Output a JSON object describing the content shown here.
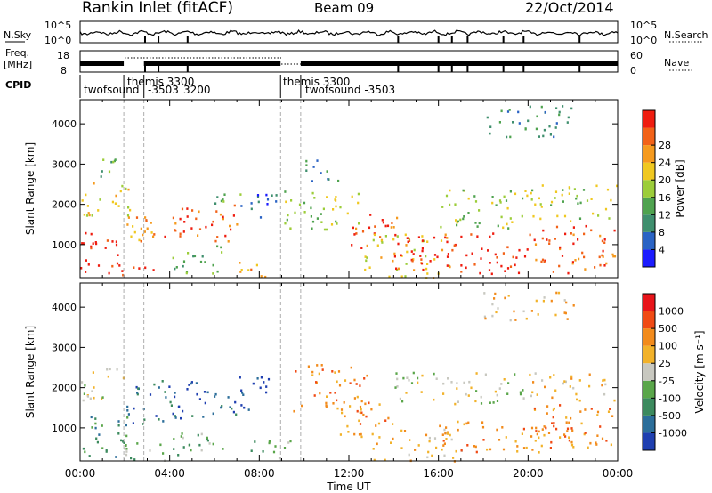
{
  "header": {
    "station": "Rankin Inlet (fitACF)",
    "beam": "Beam 09",
    "date": "22/Oct/2014"
  },
  "noise_panel": {
    "left_label": "N.Sky",
    "left_ticks": [
      "10^5",
      "10^0"
    ],
    "right_ticks": [
      "10^5",
      "10^0"
    ],
    "right_label": "N.Search"
  },
  "freq_panel": {
    "left_label_1": "Freq.",
    "left_label_2": "[MHz]",
    "left_ticks": [
      "18",
      "8"
    ],
    "right_ticks": [
      "60",
      "0"
    ],
    "right_label": "Nave"
  },
  "cpid": {
    "label": "CPID",
    "entries": [
      {
        "text": "twofsound",
        "row": "low"
      },
      {
        "text": "themis  3300",
        "row": "high"
      },
      {
        "text": "-3503",
        "row": "low"
      },
      {
        "text": "3200",
        "row": "low"
      },
      {
        "text": "themis  3300",
        "row": "high"
      },
      {
        "text": "twofsound  -3503",
        "row": "low"
      }
    ],
    "change_times_hours": [
      1.95,
      2.85,
      8.95,
      9.85
    ]
  },
  "chart_data": [
    {
      "type": "heatmap",
      "name": "power",
      "ylabel": "Slant Range [km]",
      "yticks": [
        "1000",
        "2000",
        "3000",
        "4000"
      ],
      "ylim": [
        180,
        4600
      ],
      "xlim": [
        0,
        24
      ],
      "colorbar": {
        "label": "Power [dB]",
        "ticks": [
          "4",
          "8",
          "12",
          "16",
          "20",
          "24",
          "28"
        ],
        "colors": [
          "#1c1cff",
          "#2a63c4",
          "#3f8f6e",
          "#4fa34f",
          "#9ccd3a",
          "#f0c820",
          "#f59a1e",
          "#f26218",
          "#ef1d10"
        ]
      },
      "echo_regions": [
        {
          "t0": 0.0,
          "t1": 2.0,
          "r0": 300,
          "r1": 1400,
          "level": 8
        },
        {
          "t0": 0.0,
          "t1": 2.2,
          "r0": 1700,
          "r1": 2600,
          "level": 5
        },
        {
          "t0": 0.3,
          "t1": 1.7,
          "r0": 2700,
          "r1": 3200,
          "level": 3
        },
        {
          "t0": 1.8,
          "t1": 3.5,
          "r0": 200,
          "r1": 500,
          "level": 8
        },
        {
          "t0": 2.0,
          "t1": 3.5,
          "r0": 1000,
          "r1": 2100,
          "level": 6
        },
        {
          "t0": 3.2,
          "t1": 5.0,
          "r0": 1200,
          "r1": 2000,
          "level": 7
        },
        {
          "t0": 4.0,
          "t1": 6.5,
          "r0": 300,
          "r1": 1000,
          "level": 3
        },
        {
          "t0": 5.0,
          "t1": 7.0,
          "r0": 1100,
          "r1": 2000,
          "level": 7
        },
        {
          "t0": 6.0,
          "t1": 7.5,
          "r0": 2000,
          "r1": 2400,
          "level": 3
        },
        {
          "t0": 6.8,
          "t1": 8.8,
          "r0": 1700,
          "r1": 2300,
          "level": 1
        },
        {
          "t0": 7.0,
          "t1": 8.5,
          "r0": 200,
          "r1": 700,
          "level": 6
        },
        {
          "t0": 9.0,
          "t1": 12.5,
          "r0": 1400,
          "r1": 2400,
          "level": 4
        },
        {
          "t0": 10.0,
          "t1": 11.6,
          "r0": 2600,
          "r1": 3200,
          "level": 2
        },
        {
          "t0": 12.0,
          "t1": 14.2,
          "r0": 900,
          "r1": 1800,
          "level": 7
        },
        {
          "t0": 12.5,
          "t1": 16.5,
          "r0": 200,
          "r1": 1300,
          "level": 5
        },
        {
          "t0": 14.0,
          "t1": 20.0,
          "r0": 300,
          "r1": 1300,
          "level": 8
        },
        {
          "t0": 16.0,
          "t1": 20.0,
          "r0": 1400,
          "r1": 2400,
          "level": 4
        },
        {
          "t0": 20.0,
          "t1": 24.0,
          "r0": 300,
          "r1": 1500,
          "level": 7
        },
        {
          "t0": 20.0,
          "t1": 24.0,
          "r0": 1600,
          "r1": 2500,
          "level": 4
        },
        {
          "t0": 18.0,
          "t1": 22.0,
          "r0": 3700,
          "r1": 4500,
          "level": 2
        }
      ]
    },
    {
      "type": "heatmap",
      "name": "velocity",
      "ylabel": "Slant Range [km]",
      "yticks": [
        "1000",
        "2000",
        "3000",
        "4000"
      ],
      "ylim": [
        180,
        4600
      ],
      "xlim": [
        0,
        24
      ],
      "xlabel": "Time UT",
      "xticks": [
        "00:00",
        "04:00",
        "08:00",
        "12:00",
        "16:00",
        "20:00",
        "00:00"
      ],
      "colorbar": {
        "label": "Velocity [m s⁻¹]",
        "ticks": [
          "1000",
          "500",
          "100",
          "25",
          "-25",
          "-100",
          "-500",
          "-1000"
        ],
        "colors": [
          "#1f3fb0",
          "#2c6e9a",
          "#3c8a5e",
          "#5aa64a",
          "#c8c8c0",
          "#f2b22a",
          "#f28b1c",
          "#f04a14",
          "#e8141a"
        ]
      },
      "echo_regions": [
        {
          "t0": 0.0,
          "t1": 2.2,
          "r0": 300,
          "r1": 1400,
          "level": 2
        },
        {
          "t0": 0.0,
          "t1": 2.0,
          "r0": 1700,
          "r1": 2500,
          "level": 4
        },
        {
          "t0": 1.8,
          "t1": 3.8,
          "r0": 200,
          "r1": 700,
          "level": 3
        },
        {
          "t0": 2.0,
          "t1": 5.5,
          "r0": 1100,
          "r1": 2200,
          "level": 1
        },
        {
          "t0": 4.0,
          "t1": 7.0,
          "r0": 300,
          "r1": 900,
          "level": 3
        },
        {
          "t0": 5.5,
          "t1": 7.5,
          "r0": 1300,
          "r1": 2100,
          "level": 1
        },
        {
          "t0": 6.8,
          "t1": 8.5,
          "r0": 1800,
          "r1": 2400,
          "level": 0
        },
        {
          "t0": 7.5,
          "t1": 9.5,
          "r0": 200,
          "r1": 700,
          "level": 3
        },
        {
          "t0": 9.5,
          "t1": 12.8,
          "r0": 1400,
          "r1": 2600,
          "level": 6
        },
        {
          "t0": 11.5,
          "t1": 14.0,
          "r0": 800,
          "r1": 1700,
          "level": 6
        },
        {
          "t0": 13.0,
          "t1": 17.0,
          "r0": 200,
          "r1": 1000,
          "level": 5
        },
        {
          "t0": 14.0,
          "t1": 20.0,
          "r0": 1600,
          "r1": 2400,
          "level": 4
        },
        {
          "t0": 16.0,
          "t1": 22.0,
          "r0": 400,
          "r1": 1200,
          "level": 6
        },
        {
          "t0": 20.0,
          "t1": 24.0,
          "r0": 500,
          "r1": 1600,
          "level": 6
        },
        {
          "t0": 20.0,
          "t1": 24.0,
          "r0": 1700,
          "r1": 2400,
          "level": 5
        },
        {
          "t0": 18.0,
          "t1": 22.0,
          "r0": 3700,
          "r1": 4400,
          "level": 5
        }
      ]
    }
  ]
}
